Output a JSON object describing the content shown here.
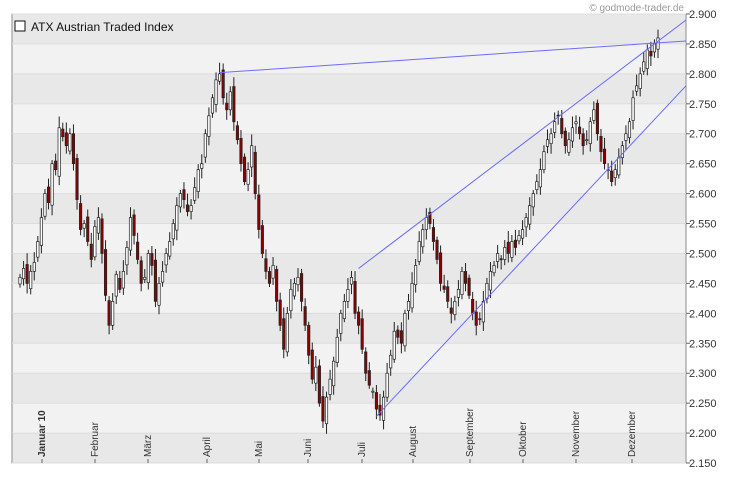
{
  "watermark": "© godmode-trader.de",
  "chart_data": {
    "type": "candlestick",
    "legend": [
      "ATX Austrian Traded Index"
    ],
    "ylim": [
      2150,
      2900
    ],
    "y_ticks": [
      "2.900",
      "2.850",
      "2.800",
      "2.750",
      "2.700",
      "2.650",
      "2.600",
      "2.550",
      "2.500",
      "2.450",
      "2.400",
      "2.350",
      "2.300",
      "2.250",
      "2.200",
      "2.150"
    ],
    "y_tick_values": [
      2900,
      2850,
      2800,
      2750,
      2700,
      2650,
      2600,
      2550,
      2500,
      2450,
      2400,
      2350,
      2300,
      2250,
      2200,
      2150
    ],
    "months": [
      {
        "label": "Januar 10",
        "bold": true
      },
      {
        "label": "Februar",
        "bold": false
      },
      {
        "label": "März",
        "bold": false
      },
      {
        "label": "April",
        "bold": false
      },
      {
        "label": "Mai",
        "bold": false
      },
      {
        "label": "Juni",
        "bold": false
      },
      {
        "label": "Juli",
        "bold": false
      },
      {
        "label": "August",
        "bold": false
      },
      {
        "label": "September",
        "bold": false
      },
      {
        "label": "Oktober",
        "bold": false
      },
      {
        "label": "November",
        "bold": false
      },
      {
        "label": "Dezember",
        "bold": false
      }
    ],
    "closes": [
      2460,
      2475,
      2450,
      2470,
      2485,
      2520,
      2560,
      2600,
      2585,
      2650,
      2640,
      2710,
      2695,
      2680,
      2700,
      2650,
      2590,
      2540,
      2550,
      2520,
      2490,
      2545,
      2560,
      2500,
      2430,
      2380,
      2420,
      2465,
      2440,
      2470,
      2510,
      2560,
      2530,
      2490,
      2450,
      2460,
      2500,
      2480,
      2420,
      2450,
      2470,
      2500,
      2520,
      2550,
      2580,
      2600,
      2590,
      2570,
      2580,
      2610,
      2640,
      2650,
      2700,
      2730,
      2760,
      2790,
      2800,
      2760,
      2740,
      2770,
      2720,
      2690,
      2650,
      2620,
      2640,
      2680,
      2600,
      2540,
      2500,
      2470,
      2450,
      2480,
      2420,
      2380,
      2340,
      2400,
      2440,
      2450,
      2460,
      2420,
      2380,
      2330,
      2290,
      2310,
      2250,
      2220,
      2260,
      2290,
      2320,
      2360,
      2400,
      2420,
      2440,
      2460,
      2400,
      2380,
      2340,
      2300,
      2280,
      2270,
      2240,
      2230,
      2260,
      2300,
      2330,
      2370,
      2360,
      2350,
      2400,
      2420,
      2450,
      2480,
      2520,
      2540,
      2560,
      2550,
      2520,
      2490,
      2450,
      2440,
      2420,
      2400,
      2420,
      2440,
      2470,
      2450,
      2430,
      2400,
      2380,
      2390,
      2420,
      2450,
      2470,
      2480,
      2500,
      2490,
      2510,
      2500,
      2520,
      2510,
      2530,
      2540,
      2560,
      2580,
      2600,
      2620,
      2640,
      2670,
      2690,
      2700,
      2720,
      2730,
      2700,
      2680,
      2690,
      2710,
      2720,
      2700,
      2680,
      2690,
      2720,
      2740,
      2700,
      2670,
      2650,
      2640,
      2620,
      2640,
      2660,
      2680,
      2700,
      2720,
      2760,
      2780,
      2800,
      2820,
      2840,
      2830,
      2850,
      2860
    ],
    "trendlines": [
      {
        "from": {
          "i": 56,
          "v": 2802
        },
        "to": {
          "i": 185,
          "v": 2855
        }
      },
      {
        "from": {
          "i": 95,
          "v": 2475
        },
        "to": {
          "i": 185,
          "v": 2890
        }
      },
      {
        "from": {
          "i": 100,
          "v": 2228
        },
        "to": {
          "i": 185,
          "v": 2780
        }
      }
    ]
  }
}
